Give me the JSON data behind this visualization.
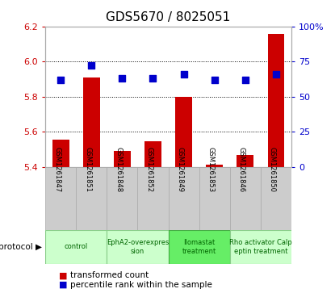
{
  "title": "GDS5670 / 8025051",
  "samples": [
    "GSM1261847",
    "GSM1261851",
    "GSM1261848",
    "GSM1261852",
    "GSM1261849",
    "GSM1261853",
    "GSM1261846",
    "GSM1261850"
  ],
  "transformed_count": [
    5.555,
    5.91,
    5.49,
    5.545,
    5.8,
    5.415,
    5.47,
    6.155
  ],
  "percentile_rank": [
    62,
    72,
    63,
    63,
    66,
    62,
    62,
    66
  ],
  "ylim_left": [
    5.4,
    6.2
  ],
  "ylim_right": [
    0,
    100
  ],
  "yticks_left": [
    5.4,
    5.6,
    5.8,
    6.0,
    6.2
  ],
  "yticks_right": [
    0,
    25,
    50,
    75,
    100
  ],
  "protocols": [
    {
      "label": "control",
      "samples": [
        0,
        1
      ],
      "color": "#ccffcc",
      "border": "#88cc88"
    },
    {
      "label": "EphA2-overexpres\nsion",
      "samples": [
        2,
        3
      ],
      "color": "#ccffcc",
      "border": "#88cc88"
    },
    {
      "label": "Ilomastat\ntreatment",
      "samples": [
        4,
        5
      ],
      "color": "#66ee66",
      "border": "#44aa44"
    },
    {
      "label": "Rho activator Calp\neptin treatment",
      "samples": [
        6,
        7
      ],
      "color": "#ccffcc",
      "border": "#88cc88"
    }
  ],
  "bar_color": "#cc0000",
  "dot_color": "#0000cc",
  "bar_width": 0.55,
  "dot_size": 28,
  "background_color": "#ffffff",
  "plot_bg_color": "#ffffff",
  "tick_color_left": "#cc0000",
  "tick_color_right": "#0000cc",
  "sample_bg_color": "#cccccc",
  "sample_border_color": "#aaaaaa",
  "title_fontsize": 11
}
